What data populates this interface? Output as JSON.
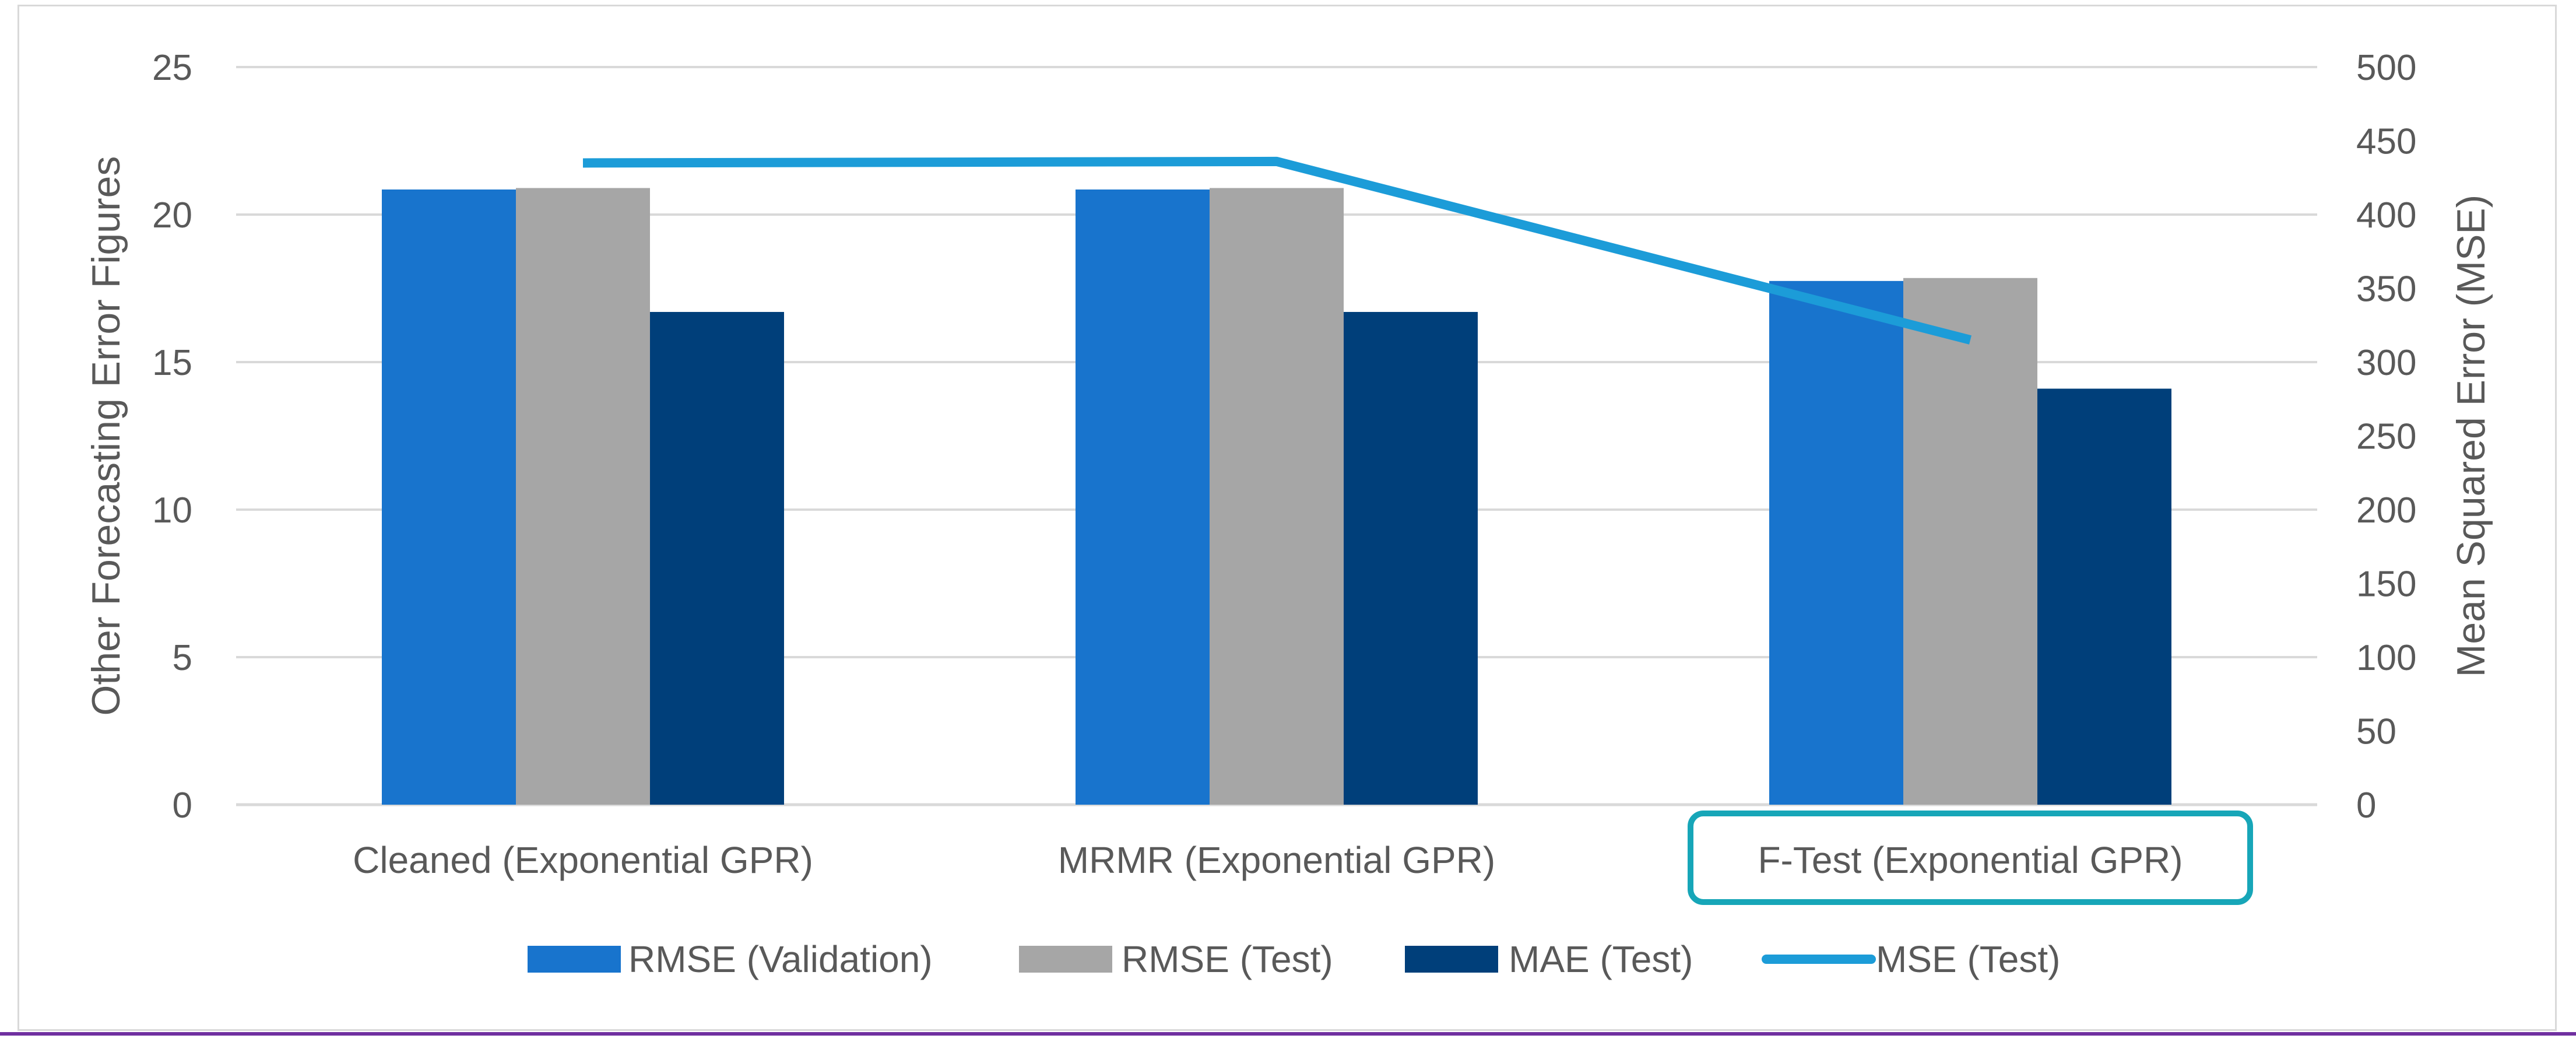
{
  "chart_data": {
    "type": "bar",
    "categories": [
      "Cleaned (Exponential GPR)",
      "MRMR (Exponential GPR)",
      "F-Test (Exponential GPR)"
    ],
    "highlighted_category": "F-Test (Exponential GPR)",
    "series": [
      {
        "name": "RMSE (Validation)",
        "type": "bar",
        "axis": "left",
        "color": "#1874cd",
        "values": [
          20.85,
          20.85,
          17.75
        ]
      },
      {
        "name": "RMSE (Test)",
        "type": "bar",
        "axis": "left",
        "color": "#a6a6a6",
        "values": [
          20.9,
          20.9,
          17.85
        ]
      },
      {
        "name": "MAE (Test)",
        "type": "bar",
        "axis": "left",
        "color": "#003f7a",
        "values": [
          16.7,
          16.7,
          14.1
        ]
      },
      {
        "name": "MSE (Test)",
        "type": "line",
        "axis": "right",
        "color": "#1c9cd8",
        "values": [
          435,
          436,
          315
        ]
      }
    ],
    "left_axis": {
      "label": "Other Forecasting Error Figures",
      "min": 0,
      "max": 25,
      "ticks": [
        0,
        5,
        10,
        15,
        20,
        25
      ]
    },
    "right_axis": {
      "label": "Mean Squared Error (MSE)",
      "min": 0,
      "max": 500,
      "ticks": [
        0,
        50,
        100,
        150,
        200,
        250,
        300,
        350,
        400,
        450,
        500
      ]
    },
    "highlight_color": "#17a6b8",
    "grid": true,
    "legend_position": "bottom"
  }
}
